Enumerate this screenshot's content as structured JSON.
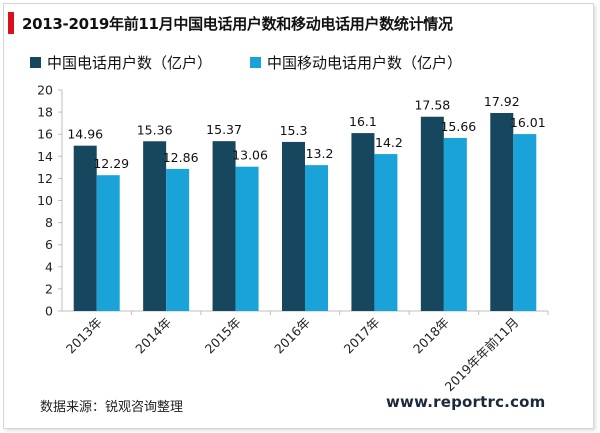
{
  "page": {
    "title": "2013-2019年前11月中国电话用户数和移动电话用户数统计情况",
    "source": "数据来源：锐观咨询整理",
    "website": "www.reportrc.com",
    "accent_color": "#d9111a"
  },
  "chart_data": {
    "type": "bar",
    "title": "2013-2019年前11月中国电话用户数和移动电话用户数统计情况",
    "xlabel": "",
    "ylabel": "",
    "categories": [
      "2013年",
      "2014年",
      "2015年",
      "2016年",
      "2017年",
      "2018年",
      "2019年年前11月"
    ],
    "series": [
      {
        "name": "中国电话用户数（亿户）",
        "color": "#17465f",
        "values": [
          14.96,
          15.36,
          15.37,
          15.3,
          16.1,
          17.58,
          17.92
        ],
        "labels": [
          "14.96",
          "15.36",
          "15.37",
          "15.3",
          "16.1",
          "17.58",
          "17.92"
        ]
      },
      {
        "name": "中国移动电话用户数（亿户）",
        "color": "#1aa3d9",
        "values": [
          12.29,
          12.86,
          13.06,
          13.2,
          14.2,
          15.66,
          16.01
        ],
        "labels": [
          "12.29",
          "12.86",
          "13.06",
          "13.2",
          "14.2",
          "15.66",
          "16.01"
        ]
      }
    ],
    "ylim": [
      0,
      20
    ],
    "yticks": [
      "0",
      "2",
      "4",
      "6",
      "8",
      "10",
      "12",
      "14",
      "16",
      "18",
      "20"
    ],
    "grid": false,
    "legend": "top-left"
  }
}
